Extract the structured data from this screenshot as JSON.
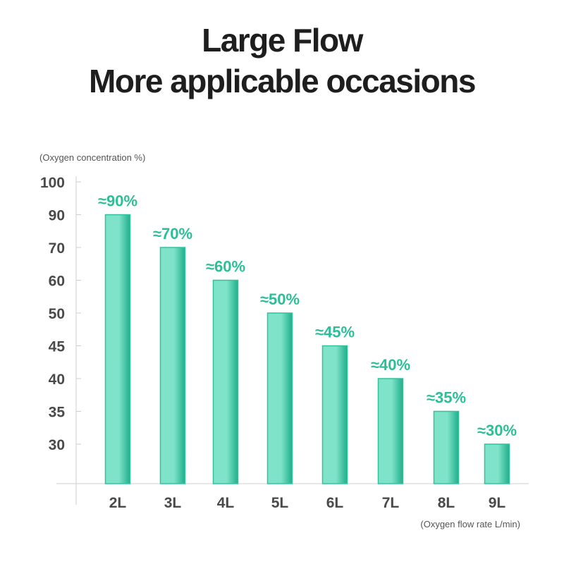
{
  "header": {
    "title_line1": "Large Flow",
    "title_line2": "More applicable occasions"
  },
  "colors": {
    "bar_light": "#7ee3c8",
    "bar_dark": "#1fae8a",
    "bar_edge": "#2fc49d",
    "label": "#2bbf98",
    "axis": "#cfcfcf",
    "tick_text": "#4a4a4a"
  },
  "chart_data": {
    "type": "bar",
    "categories": [
      "2L",
      "3L",
      "4L",
      "5L",
      "6L",
      "7L",
      "8L",
      "9L"
    ],
    "values": [
      90,
      70,
      60,
      50,
      45,
      40,
      35,
      30
    ],
    "data_labels": [
      "≈90%",
      "≈70%",
      "≈60%",
      "≈50%",
      "≈45%",
      "≈40%",
      "≈35%",
      "≈30%"
    ],
    "ylabel": "(Oxygen concentration %)",
    "xlabel": "(Oxygen flow rate L/min)",
    "y_ticks": [
      "100",
      "90",
      "70",
      "60",
      "50",
      "45",
      "40",
      "35",
      "30"
    ],
    "y_scale": "categorical-steps",
    "grid": false
  }
}
